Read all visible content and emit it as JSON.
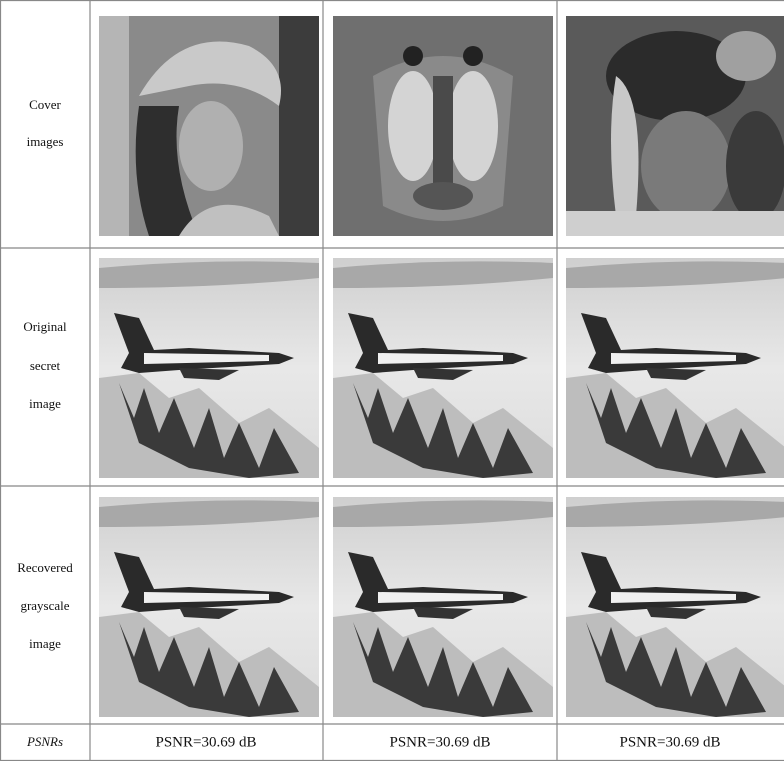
{
  "table": {
    "rows": [
      {
        "label": [
          "Cover",
          "images"
        ]
      },
      {
        "label": [
          "Original",
          "secret",
          "image"
        ]
      },
      {
        "label": [
          "Recovered",
          "grayscale",
          "image"
        ]
      },
      {
        "label": [
          "PSNRs"
        ],
        "cells": [
          "PSNR=30.69 dB",
          "PSNR=30.69 dB",
          "PSNR=30.69 dB"
        ]
      }
    ]
  }
}
